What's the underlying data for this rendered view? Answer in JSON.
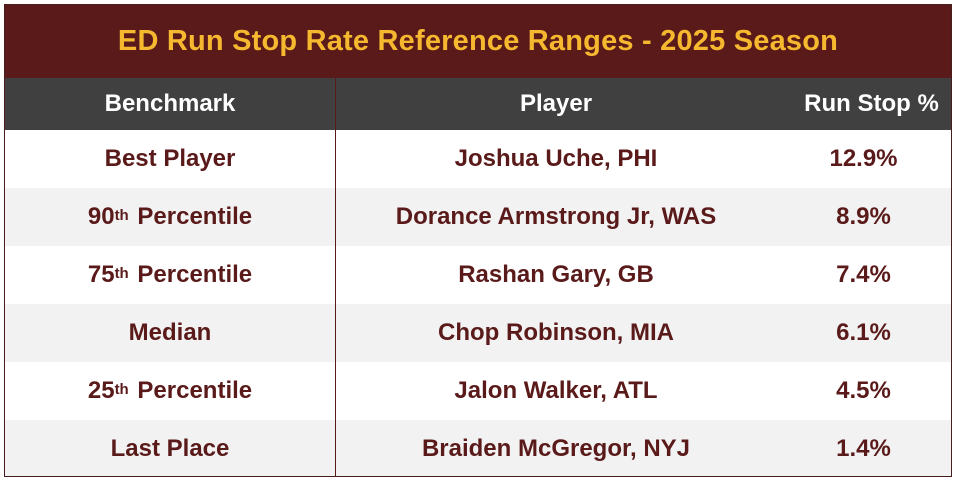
{
  "title": "ED Run Stop Rate Reference Ranges - 2025 Season",
  "headers": {
    "benchmark": "Benchmark",
    "player": "Player",
    "run_stop": "Run Stop %"
  },
  "rows": [
    {
      "benchmark": "Best Player",
      "sup": "",
      "suffix": "",
      "player": "Joshua Uche, PHI",
      "value": "12.9%"
    },
    {
      "benchmark": "90",
      "sup": "th",
      "suffix": " Percentile",
      "player": "Dorance Armstrong Jr, WAS",
      "value": "8.9%"
    },
    {
      "benchmark": "75",
      "sup": "th",
      "suffix": " Percentile",
      "player": "Rashan Gary, GB",
      "value": "7.4%"
    },
    {
      "benchmark": "Median",
      "sup": "",
      "suffix": "",
      "player": "Chop Robinson, MIA",
      "value": "6.1%"
    },
    {
      "benchmark": "25",
      "sup": "th",
      "suffix": " Percentile",
      "player": "Jalon Walker, ATL",
      "value": "4.5%"
    },
    {
      "benchmark": "Last Place",
      "sup": "",
      "suffix": "",
      "player": "Braiden McGregor, NYJ",
      "value": "1.4%"
    }
  ],
  "colors": {
    "title_bg": "#5a1a1a",
    "title_text": "#f5b82e",
    "header_bg": "#404040",
    "header_text": "#ffffff",
    "body_text": "#5a1a1a",
    "alt_row_bg": "#f2f2f2"
  }
}
